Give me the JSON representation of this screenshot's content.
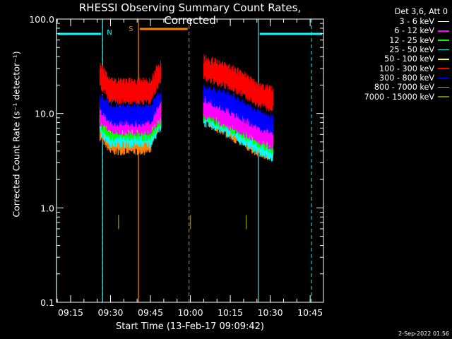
{
  "chart_data": {
    "type": "line",
    "title": "RHESSI Observing Summary Count Rates, Corrected",
    "xlabel": "Start Time (13-Feb-17 09:09:42)",
    "ylabel": "Corrected Count Rate (s⁻¹ detector⁻¹)",
    "y_scale": "log",
    "ylim": [
      0.1,
      100.0
    ],
    "xlim": [
      "09:09:42",
      "10:50:00"
    ],
    "y_ticks": [
      "0.1",
      "1.0",
      "10.0",
      "100.0"
    ],
    "x_ticks": [
      "09:15",
      "09:30",
      "09:45",
      "10:00",
      "10:15",
      "10:30",
      "10:45"
    ],
    "legend_header": "Det 3,6, Att 0",
    "legend_position": "top-right",
    "series": [
      {
        "name": "3 - 6 keV",
        "color": "#000000",
        "levels": [
          20,
          16,
          16,
          22,
          25,
          21,
          14,
          12
        ]
      },
      {
        "name": "6 - 12 keV",
        "color": "#ff00ff",
        "levels": [
          10,
          8,
          8,
          11,
          12,
          9,
          6.5,
          5.5
        ]
      },
      {
        "name": "12 - 25 keV",
        "color": "#00ff00",
        "levels": [
          9,
          7,
          7,
          10,
          11,
          8.5,
          6,
          5
        ]
      },
      {
        "name": "25 - 50 keV",
        "color": "#00ffff",
        "levels": [
          8,
          6,
          6,
          9,
          10,
          7.5,
          5,
          4.2
        ]
      },
      {
        "name": "50 - 100 keV",
        "color": "#ffff00",
        "levels": [
          11,
          8.5,
          8.5,
          12,
          13,
          10,
          7,
          6
        ]
      },
      {
        "name": "100 - 300 keV",
        "color": "#ff0000",
        "levels": [
          25,
          17,
          17,
          28,
          30,
          24,
          16,
          14
        ]
      },
      {
        "name": "300 - 800 keV",
        "color": "#0000ff",
        "levels": [
          14,
          10,
          10,
          17,
          18,
          13,
          9,
          8
        ]
      },
      {
        "name": "800 - 7000 keV",
        "color": "#ff8000",
        "levels": [
          7,
          5,
          5,
          10,
          10.5,
          7,
          4.8,
          4.2
        ]
      },
      {
        "name": "7000 - 15000 keV",
        "color": "#808000",
        "levels": [
          0.7,
          0.7,
          0.7,
          0.7,
          0.7,
          0.7,
          0.7,
          0.7
        ]
      }
    ],
    "segments": [
      {
        "start": "09:26:00",
        "end": "09:49:00"
      },
      {
        "start": "10:05:00",
        "end": "10:31:00"
      }
    ],
    "level_times": [
      "09:26",
      "09:30",
      "09:45",
      "09:49",
      "10:05",
      "10:15",
      "10:25",
      "10:31"
    ],
    "annotations": {
      "night_label": "N",
      "saa_label": "S",
      "night_lines": [
        "09:09:42",
        "09:27:00",
        "10:25:30"
      ],
      "night_lines_dashed": [
        "09:27:00",
        "10:45:30"
      ],
      "saa_solid": [
        "09:40:30"
      ],
      "saa_dashed": [
        "09:59:30"
      ]
    },
    "timestamp": "2-Sep-2022 01:56"
  }
}
